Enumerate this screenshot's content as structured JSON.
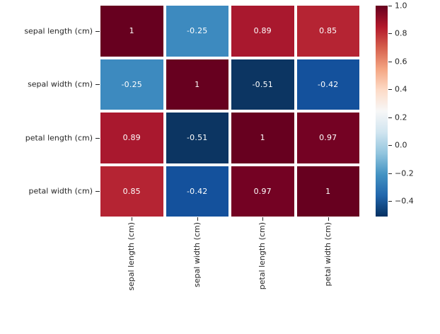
{
  "chart_data": {
    "type": "heatmap",
    "title": "",
    "x_tick_labels": [
      "sepal length (cm)",
      "sepal width (cm)",
      "petal length (cm)",
      "petal width (cm)"
    ],
    "y_tick_labels": [
      "sepal length (cm)",
      "sepal width (cm)",
      "petal length (cm)",
      "petal width (cm)"
    ],
    "matrix": [
      [
        1,
        -0.25,
        0.89,
        0.85
      ],
      [
        -0.25,
        1,
        -0.51,
        -0.42
      ],
      [
        0.89,
        -0.51,
        1,
        0.97
      ],
      [
        0.85,
        -0.42,
        0.97,
        1
      ]
    ],
    "cell_colors": [
      [
        "#67001f",
        "#3d8abf",
        "#a9182e",
        "#b52433"
      ],
      [
        "#3d8abf",
        "#67001f",
        "#0c3562",
        "#14519c"
      ],
      [
        "#a9182e",
        "#0c3562",
        "#67001f",
        "#740223"
      ],
      [
        "#b52433",
        "#14519c",
        "#740223",
        "#67001f"
      ]
    ],
    "annotation_color": "#ffffff",
    "grid_line_color": "#ffffff",
    "tick_color": "#262626",
    "background": "#ffffff",
    "colorbar": {
      "colormap": "RdBu_r",
      "vmin": -0.51,
      "vmax": 1.0,
      "tick_values": [
        1.0,
        0.8,
        0.6,
        0.4,
        0.2,
        0.0,
        -0.2,
        -0.4
      ],
      "tick_labels": [
        "1.0",
        "0.8",
        "0.6",
        "0.4",
        "0.2",
        "0.0",
        "−0.2",
        "−0.4"
      ],
      "gradient_stops": [
        "#67001f",
        "#b2182b",
        "#d6604d",
        "#f4a582",
        "#fddbc7",
        "#f7f7f7",
        "#d1e5f0",
        "#92c5de",
        "#4393c3",
        "#2166ac",
        "#053061"
      ]
    }
  }
}
